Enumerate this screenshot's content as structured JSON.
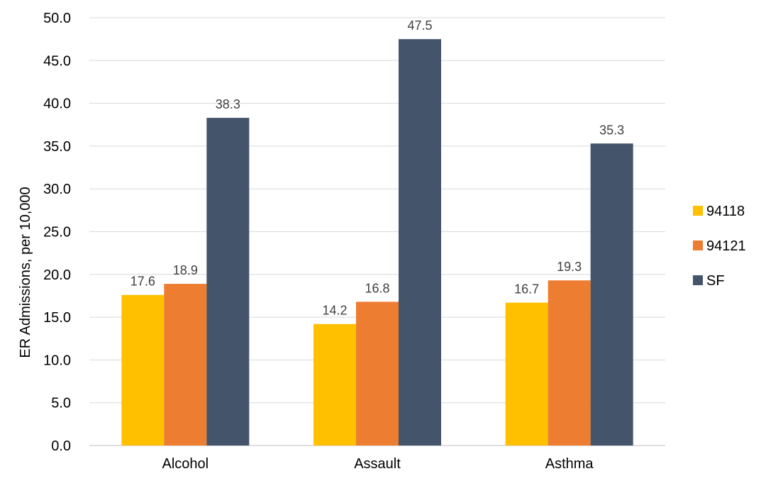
{
  "chart_data": {
    "type": "bar",
    "title": "",
    "xlabel": "",
    "ylabel": "ER Admissions, per 10,000",
    "categories": [
      "Alcohol",
      "Assault",
      "Asthma"
    ],
    "series": [
      {
        "name": "94118",
        "values": [
          17.6,
          14.2,
          16.7
        ],
        "color": "#FFC000"
      },
      {
        "name": "94121",
        "values": [
          18.9,
          16.8,
          19.3
        ],
        "color": "#ED7D31"
      },
      {
        "name": "SF",
        "values": [
          38.3,
          47.5,
          35.3
        ],
        "color": "#44546A"
      }
    ],
    "ylim": [
      0,
      50
    ],
    "yticks": [
      "0.0",
      "5.0",
      "10.0",
      "15.0",
      "20.0",
      "25.0",
      "30.0",
      "35.0",
      "40.0",
      "45.0",
      "50.0"
    ],
    "grid": true,
    "legend_position": "right",
    "data_labels": true
  }
}
